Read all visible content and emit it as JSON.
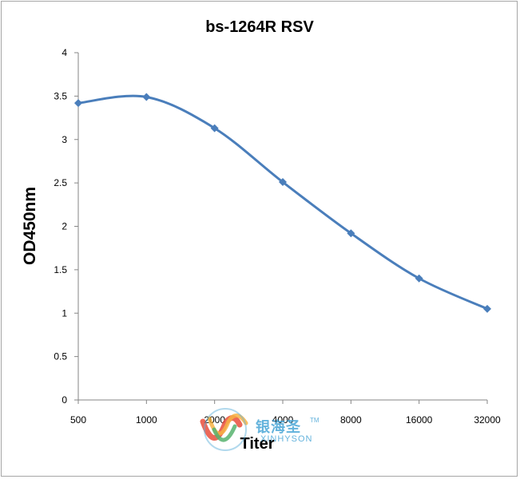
{
  "chart_data": {
    "type": "line",
    "title": "bs-1264R RSV",
    "xlabel": "Titer",
    "ylabel": "OD450nm",
    "categories": [
      "500",
      "1000",
      "2000",
      "4000",
      "8000",
      "16000",
      "32000"
    ],
    "series": [
      {
        "values": [
          3.42,
          3.49,
          3.13,
          2.51,
          1.92,
          1.4,
          1.05
        ]
      }
    ],
    "ylim": [
      0,
      4
    ],
    "yticks": [
      "0",
      "0.5",
      "1",
      "1.5",
      "2",
      "2.5",
      "3",
      "3.5",
      "4"
    ],
    "grid": false,
    "legend": "none",
    "line_color": "#4a7ebb"
  },
  "watermark": {
    "chinese": "银海圣",
    "english": "XINHYSON",
    "tm": "TM",
    "colors": [
      "#e94e3c",
      "#f6a623",
      "#3aa655",
      "#4aa6d6"
    ]
  }
}
